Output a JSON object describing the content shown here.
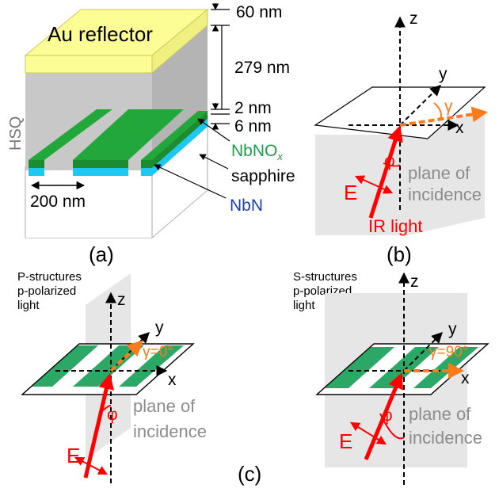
{
  "colors": {
    "gold": "#fdfd96",
    "hsq_gray": "#c8c8c8",
    "green": "#22a83a",
    "cyan": "#1ec8f0",
    "red": "#ff0000",
    "orange": "#ff7a1a",
    "plane_gray": "#e6e6e6",
    "text_gray": "#8c8c8c",
    "green_text": "#1f9b4a",
    "blue_text": "#1c3fa5"
  },
  "panel_a": {
    "label": "(a)",
    "au_label": "Au reflector",
    "hsq_label": "HSQ",
    "dim_60": "60 nm",
    "dim_279": "279 nm",
    "dim_2": "2 nm",
    "dim_6": "6 nm",
    "width_200": "200 nm",
    "nbnox_main": "NbNO",
    "nbnox_sub": "x",
    "sapphire": "sapphire",
    "nbn": "NbN"
  },
  "panel_b": {
    "label": "(b)",
    "axis_z": "z",
    "axis_y": "y",
    "axis_x": "x",
    "gamma": "γ",
    "phi": "φ",
    "e_field": "E",
    "plane_line1": "plane of",
    "plane_line2": "incidence",
    "ir_light": "IR light"
  },
  "panel_c": {
    "label": "(c)",
    "left": {
      "title_line1": "P-structures",
      "title_line2": "p-polarized",
      "title_line3": "light",
      "axis_z": "z",
      "axis_y": "y",
      "axis_x": "x",
      "gamma": "γ=0°",
      "phi": "φ",
      "e_field": "E",
      "plane_line1": "plane of",
      "plane_line2": "incidence"
    },
    "right": {
      "title_line1": "S-structures",
      "title_line2": "p-polarized",
      "title_line3": "light",
      "axis_z": "z",
      "axis_y": "y",
      "axis_x": "x",
      "gamma": "γ=90°",
      "phi": "φ",
      "e_field": "E",
      "plane_line1": "plane of",
      "plane_line2": "incidence"
    }
  }
}
